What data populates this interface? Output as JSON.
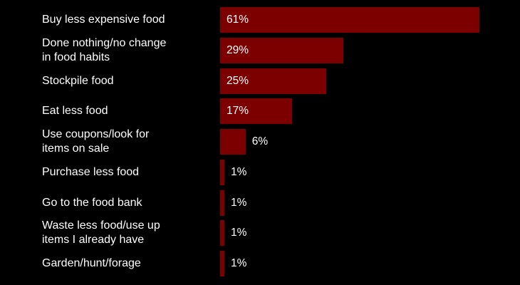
{
  "chart_data": {
    "type": "bar",
    "orientation": "horizontal",
    "categories": [
      "Buy less expensive food",
      "Done nothing/no change\nin food habits",
      "Stockpile food",
      "Eat less food",
      "Use coupons/look for\nitems on sale",
      "Purchase less food",
      "Go to the food bank",
      "Waste less food/use up\nitems I already have",
      "Garden/hunt/forage"
    ],
    "values": [
      61,
      29,
      25,
      17,
      6,
      1,
      1,
      1,
      1
    ],
    "value_labels": [
      "61%",
      "29%",
      "25%",
      "17%",
      "6%",
      "1%",
      "1%",
      "1%",
      "1%"
    ],
    "unit": "%",
    "bar_color": "#7d0000",
    "background": "#000000",
    "text_color": "#ffffff",
    "grid": false,
    "legend": false
  }
}
